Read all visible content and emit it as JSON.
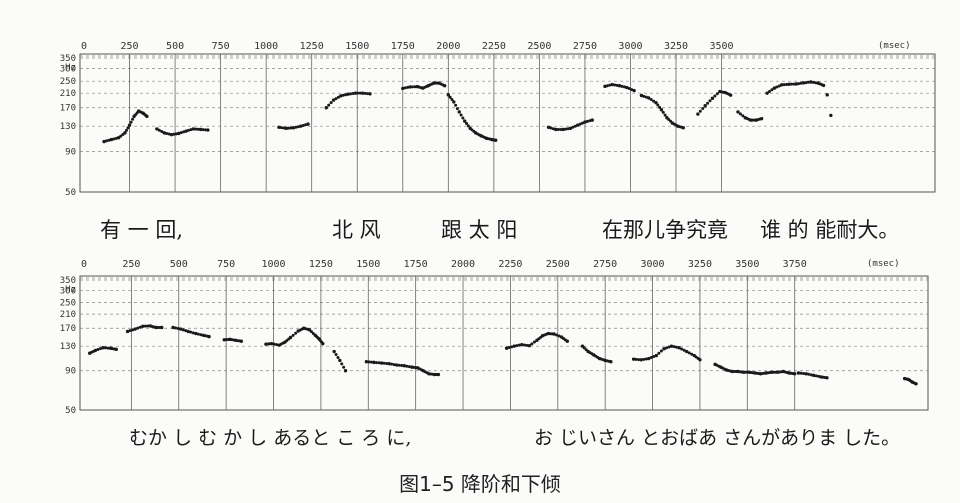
{
  "figure_caption": "图1–5 降阶和下倾",
  "chart_data": [
    {
      "type": "scatter",
      "xunit": "(msec)",
      "yunit": "Hz",
      "xlim": [
        0,
        4550
      ],
      "ylim": [
        50,
        350
      ],
      "yscale": "log",
      "x_ticks": [
        0,
        250,
        500,
        750,
        1000,
        1250,
        1500,
        1750,
        2000,
        2250,
        2500,
        2750,
        3000,
        3250,
        3500
      ],
      "y_ticks": [
        50,
        90,
        130,
        170,
        210,
        250,
        300,
        350
      ],
      "grid": true,
      "caption_text": [
        {
          "t": "有 一 回,",
          "x": 100
        },
        {
          "t": "北 风",
          "x": 332
        },
        {
          "t": "跟 太 阳",
          "x": 441
        },
        {
          "t": "在那儿争究竟",
          "x": 602
        },
        {
          "t": "谁 的 能耐大。",
          "x": 760
        }
      ],
      "series": [
        {
          "segments": [
            [
              [
                110,
                104
              ],
              [
                150,
                107
              ],
              [
                190,
                110
              ],
              [
                225,
                118
              ],
              [
                250,
                132
              ],
              [
                275,
                150
              ],
              [
                300,
                162
              ],
              [
                325,
                157
              ],
              [
                345,
                150
              ]
            ],
            [
              [
                400,
                125
              ],
              [
                440,
                118
              ],
              [
                480,
                115
              ],
              [
                520,
                117
              ],
              [
                560,
                121
              ],
              [
                600,
                125
              ],
              [
                640,
                124
              ],
              [
                680,
                123
              ]
            ],
            [
              [
                1070,
                128
              ],
              [
                1110,
                126
              ],
              [
                1150,
                127
              ],
              [
                1190,
                130
              ],
              [
                1230,
                134
              ]
            ],
            [
              [
                1330,
                170
              ],
              [
                1370,
                190
              ],
              [
                1410,
                202
              ],
              [
                1450,
                207
              ],
              [
                1490,
                210
              ],
              [
                1530,
                210
              ],
              [
                1570,
                208
              ]
            ],
            [
              [
                1750,
                225
              ],
              [
                1790,
                230
              ],
              [
                1830,
                231
              ],
              [
                1860,
                226
              ],
              [
                1890,
                234
              ],
              [
                1920,
                243
              ],
              [
                1950,
                243
              ],
              [
                1980,
                234
              ]
            ],
            [
              [
                2000,
                205
              ],
              [
                2030,
                185
              ],
              [
                2060,
                160
              ],
              [
                2090,
                140
              ],
              [
                2120,
                126
              ],
              [
                2150,
                118
              ],
              [
                2180,
                113
              ],
              [
                2210,
                109
              ],
              [
                2240,
                107
              ],
              [
                2260,
                106
              ]
            ],
            [
              [
                2550,
                128
              ],
              [
                2590,
                124
              ],
              [
                2630,
                124
              ],
              [
                2670,
                126
              ],
              [
                2710,
                132
              ],
              [
                2750,
                138
              ],
              [
                2790,
                142
              ]
            ],
            [
              [
                2860,
                232
              ],
              [
                2900,
                238
              ],
              [
                2940,
                234
              ],
              [
                2980,
                228
              ],
              [
                3020,
                218
              ]
            ],
            [
              [
                3060,
                203
              ],
              [
                3100,
                196
              ],
              [
                3140,
                183
              ],
              [
                3170,
                165
              ],
              [
                3200,
                147
              ],
              [
                3230,
                136
              ],
              [
                3260,
                130
              ],
              [
                3290,
                127
              ]
            ],
            [
              [
                3370,
                155
              ],
              [
                3410,
                175
              ],
              [
                3450,
                195
              ],
              [
                3490,
                215
              ],
              [
                3520,
                212
              ],
              [
                3550,
                204
              ]
            ],
            [
              [
                3590,
                160
              ],
              [
                3630,
                147
              ],
              [
                3660,
                142
              ],
              [
                3690,
                142
              ],
              [
                3720,
                145
              ]
            ],
            [
              [
                3750,
                210
              ],
              [
                3790,
                226
              ],
              [
                3830,
                237
              ],
              [
                3870,
                239
              ],
              [
                3910,
                240
              ],
              [
                3950,
                244
              ],
              [
                3990,
                247
              ],
              [
                4030,
                243
              ],
              [
                4060,
                235
              ]
            ],
            [
              [
                4080,
                205
              ]
            ],
            [
              [
                4100,
                152
              ]
            ]
          ]
        }
      ]
    },
    {
      "type": "scatter",
      "xunit": "(msec)",
      "yunit": "Hz",
      "xlim": [
        0,
        4450
      ],
      "ylim": [
        50,
        350
      ],
      "yscale": "log",
      "x_ticks": [
        0,
        250,
        500,
        750,
        1000,
        1250,
        1500,
        1750,
        2000,
        2250,
        2500,
        2750,
        3000,
        3250,
        3500,
        3750
      ],
      "y_ticks": [
        50,
        90,
        130,
        170,
        210,
        250,
        300,
        350
      ],
      "grid": true,
      "caption_text": [
        {
          "t": "むか し む か し あると こ ろ に,",
          "x": 129
        },
        {
          "t": "お じいさん とおばあ さんがありま した。",
          "x": 534
        }
      ],
      "series": [
        {
          "segments": [
            [
              [
                30,
                117
              ],
              [
                60,
                122
              ],
              [
                100,
                127
              ],
              [
                140,
                126
              ],
              [
                170,
                124
              ]
            ],
            [
              [
                230,
                162
              ],
              [
                270,
                168
              ],
              [
                310,
                175
              ],
              [
                350,
                176
              ],
              [
                380,
                172
              ],
              [
                410,
                172
              ]
            ],
            [
              [
                470,
                172
              ],
              [
                510,
                168
              ],
              [
                550,
                162
              ],
              [
                590,
                157
              ],
              [
                630,
                153
              ],
              [
                660,
                150
              ]
            ],
            [
              [
                740,
                143
              ],
              [
                770,
                144
              ],
              [
                800,
                142
              ],
              [
                830,
                140
              ]
            ],
            [
              [
                960,
                134
              ],
              [
                990,
                135
              ],
              [
                1030,
                132
              ],
              [
                1060,
                138
              ],
              [
                1090,
                148
              ],
              [
                1130,
                163
              ],
              [
                1160,
                170
              ],
              [
                1190,
                166
              ],
              [
                1220,
                153
              ],
              [
                1240,
                145
              ],
              [
                1260,
                135
              ]
            ],
            [
              [
                1320,
                120
              ],
              [
                1350,
                105
              ],
              [
                1380,
                90
              ]
            ],
            [
              [
                1490,
                103
              ],
              [
                1530,
                102
              ],
              [
                1570,
                101
              ],
              [
                1610,
                100
              ],
              [
                1650,
                98
              ],
              [
                1690,
                97
              ],
              [
                1730,
                95
              ],
              [
                1760,
                94
              ],
              [
                1790,
                90
              ],
              [
                1820,
                86
              ],
              [
                1850,
                85
              ],
              [
                1870,
                85
              ]
            ],
            [
              [
                2230,
                126
              ],
              [
                2270,
                130
              ],
              [
                2310,
                133
              ],
              [
                2350,
                131
              ],
              [
                2390,
                142
              ],
              [
                2420,
                152
              ],
              [
                2450,
                157
              ],
              [
                2480,
                156
              ],
              [
                2520,
                149
              ],
              [
                2550,
                140
              ]
            ],
            [
              [
                2630,
                130
              ],
              [
                2660,
                120
              ],
              [
                2690,
                114
              ],
              [
                2720,
                108
              ],
              [
                2750,
                105
              ],
              [
                2780,
                103
              ]
            ],
            [
              [
                2900,
                107
              ],
              [
                2940,
                106
              ],
              [
                2980,
                108
              ],
              [
                3020,
                113
              ],
              [
                3060,
                125
              ],
              [
                3100,
                130
              ],
              [
                3140,
                127
              ],
              [
                3180,
                120
              ],
              [
                3220,
                113
              ],
              [
                3250,
                106
              ]
            ],
            [
              [
                3330,
                99
              ],
              [
                3360,
                95
              ],
              [
                3390,
                91
              ],
              [
                3420,
                89
              ],
              [
                3450,
                89
              ],
              [
                3480,
                88
              ],
              [
                3510,
                88
              ],
              [
                3540,
                87
              ],
              [
                3570,
                86
              ],
              [
                3600,
                87
              ],
              [
                3630,
                88
              ],
              [
                3660,
                88
              ],
              [
                3690,
                89
              ],
              [
                3720,
                87
              ],
              [
                3750,
                86
              ]
            ],
            [
              [
                3770,
                87
              ],
              [
                3810,
                86
              ],
              [
                3850,
                84
              ],
              [
                3890,
                82
              ],
              [
                3920,
                81
              ]
            ],
            [
              [
                4330,
                80
              ],
              [
                4350,
                79
              ],
              [
                4370,
                76
              ],
              [
                4390,
                74
              ]
            ]
          ]
        }
      ]
    }
  ]
}
